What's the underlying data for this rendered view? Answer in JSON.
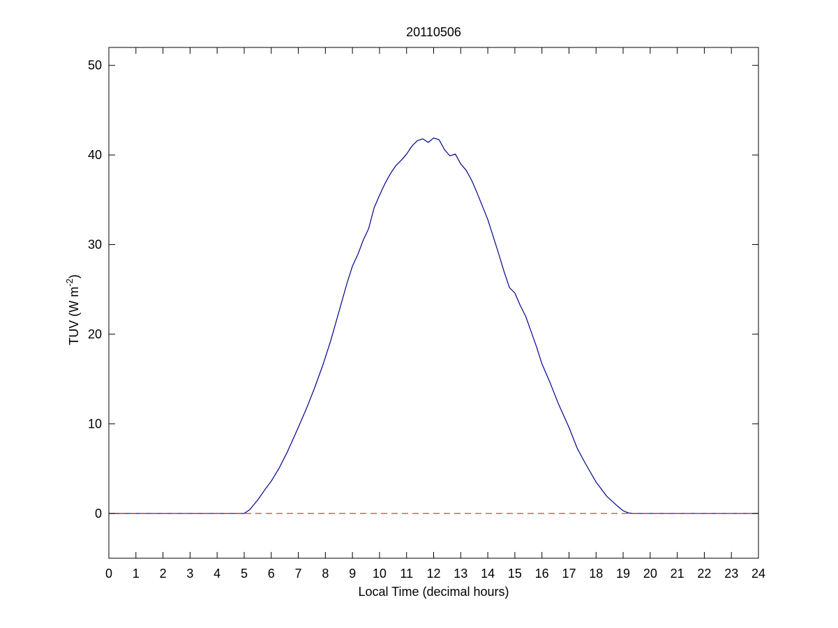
{
  "chart_data": {
    "type": "line",
    "title": "20110506",
    "xlabel": "Local Time (decimal hours)",
    "ylabel": {
      "prefix": "TUV (W m",
      "superscript": "-2",
      "suffix": ")"
    },
    "xlim": [
      0,
      24
    ],
    "ylim": [
      -5,
      52
    ],
    "xticks": [
      0,
      1,
      2,
      3,
      4,
      5,
      6,
      7,
      8,
      9,
      10,
      11,
      12,
      13,
      14,
      15,
      16,
      17,
      18,
      19,
      20,
      21,
      22,
      23,
      24
    ],
    "yticks": [
      0,
      10,
      20,
      30,
      40,
      50
    ],
    "grid": false,
    "series": [
      {
        "color": "#00008b",
        "style": "solid",
        "x": [
          0,
          5.0,
          5.2,
          5.5,
          5.8,
          6.0,
          6.3,
          6.6,
          7.0,
          7.3,
          7.6,
          7.9,
          8.2,
          8.5,
          8.8,
          9.0,
          9.2,
          9.4,
          9.6,
          9.8,
          10.0,
          10.2,
          10.4,
          10.6,
          10.8,
          11.0,
          11.2,
          11.4,
          11.6,
          11.8,
          12.0,
          12.2,
          12.4,
          12.6,
          12.8,
          13.0,
          13.2,
          13.4,
          13.6,
          13.8,
          14.0,
          14.2,
          14.4,
          14.6,
          14.8,
          15.0,
          15.2,
          15.4,
          15.6,
          15.8,
          16.0,
          16.3,
          16.6,
          17.0,
          17.3,
          17.6,
          18.0,
          18.4,
          18.8,
          19.0,
          19.2,
          19.35,
          19.6,
          24
        ],
        "y": [
          0,
          0,
          0.4,
          1.5,
          2.8,
          3.6,
          5.1,
          6.9,
          9.6,
          11.7,
          14.0,
          16.5,
          19.3,
          22.5,
          25.7,
          27.6,
          28.9,
          30.5,
          31.8,
          34.1,
          35.5,
          36.8,
          37.9,
          38.8,
          39.4,
          40.1,
          41.0,
          41.6,
          41.8,
          41.4,
          41.9,
          41.7,
          40.6,
          39.9,
          40.1,
          39.0,
          38.3,
          37.2,
          35.8,
          34.3,
          32.8,
          30.9,
          29.0,
          27.0,
          25.2,
          24.6,
          23.2,
          22.0,
          20.3,
          18.6,
          16.7,
          14.6,
          12.3,
          9.6,
          7.3,
          5.6,
          3.5,
          1.9,
          0.8,
          0.3,
          0.05,
          0,
          0,
          0
        ]
      },
      {
        "color": "#d62728",
        "style": "dashed",
        "x": [
          0,
          24
        ],
        "y": [
          0,
          0
        ]
      }
    ]
  }
}
